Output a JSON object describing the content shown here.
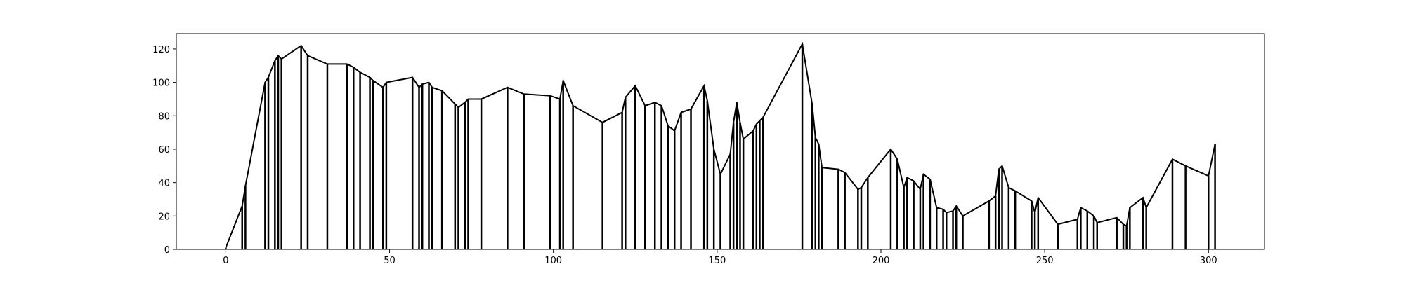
{
  "chart_data": {
    "type": "line",
    "drop_lines": true,
    "color": "#000000",
    "x": [
      0,
      5,
      6,
      12,
      13,
      15,
      16,
      17,
      23,
      25,
      31,
      37,
      39,
      41,
      44,
      45,
      48,
      49,
      57,
      59,
      60,
      62,
      63,
      66,
      70,
      71,
      73,
      74,
      78,
      86,
      91,
      99,
      102,
      103,
      106,
      115,
      121,
      122,
      125,
      128,
      131,
      133,
      135,
      137,
      139,
      142,
      146,
      147,
      149,
      151,
      154,
      155,
      156,
      157,
      158,
      161,
      162,
      163,
      164,
      176,
      179,
      180,
      181,
      182,
      187,
      189,
      193,
      194,
      196,
      203,
      205,
      207,
      208,
      210,
      212,
      213,
      215,
      217,
      219,
      220,
      222,
      223,
      225,
      233,
      235,
      236,
      237,
      239,
      241,
      246,
      247,
      248,
      254,
      260,
      261,
      263,
      265,
      266,
      272,
      274,
      275,
      276,
      280,
      281,
      289,
      293,
      300,
      302
    ],
    "y": [
      1,
      26,
      38,
      100,
      103,
      113,
      116,
      114,
      122,
      116,
      111,
      111,
      109,
      106,
      103,
      101,
      97,
      100,
      103,
      97,
      99,
      100,
      97,
      95,
      87,
      85,
      88,
      90,
      90,
      97,
      93,
      92,
      90,
      101,
      86,
      76,
      82,
      91,
      98,
      86,
      88,
      86,
      74,
      71,
      82,
      84,
      98,
      89,
      60,
      45,
      57,
      76,
      88,
      76,
      66,
      71,
      75,
      77,
      79,
      123,
      87,
      67,
      63,
      49,
      48,
      46,
      36,
      37,
      43,
      60,
      54,
      37,
      43,
      41,
      36,
      45,
      42,
      25,
      24,
      22,
      23,
      26,
      20,
      29,
      32,
      48,
      50,
      37,
      35,
      29,
      22,
      31,
      15,
      18,
      25,
      23,
      20,
      16,
      19,
      15,
      14,
      25,
      31,
      25,
      54,
      50,
      44,
      63
    ],
    "xlim": [
      -15.1,
      317.1
    ],
    "ylim": [
      0,
      129.2
    ],
    "xticks": [
      0,
      50,
      100,
      150,
      200,
      250,
      300
    ],
    "yticks": [
      0,
      20,
      40,
      60,
      80,
      100,
      120
    ]
  }
}
